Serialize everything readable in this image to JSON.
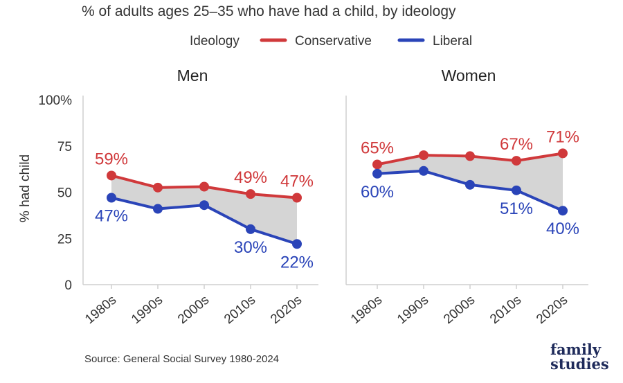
{
  "chart_data": {
    "type": "line",
    "subtitle": "% of adults ages 25–35 who have had a child, by ideology",
    "legend": {
      "title": "Ideology",
      "placement": "top-center",
      "entries": [
        {
          "name": "Conservative",
          "color": "#d0393b"
        },
        {
          "name": "Liberal",
          "color": "#2a44b8"
        }
      ]
    },
    "ylabel": "% had child",
    "ylim": [
      0,
      100
    ],
    "yticks": [
      0,
      25,
      50,
      75,
      100
    ],
    "ytick_labels": [
      "0",
      "25",
      "50",
      "75",
      "100%"
    ],
    "categories": [
      "1980s",
      "1990s",
      "2000s",
      "2010s",
      "2020s"
    ],
    "grid": false,
    "gap_fill": "#d5d5d5",
    "facets": [
      {
        "title": "Men",
        "series": [
          {
            "name": "Conservative",
            "values": [
              59,
              52.5,
              53,
              49,
              47
            ],
            "labels": [
              "59%",
              "",
              "",
              "49%",
              "47%"
            ]
          },
          {
            "name": "Liberal",
            "values": [
              47,
              41,
              43,
              30,
              22
            ],
            "labels": [
              "47%",
              "",
              "",
              "30%",
              "22%"
            ]
          }
        ]
      },
      {
        "title": "Women",
        "series": [
          {
            "name": "Conservative",
            "values": [
              65,
              70,
              69.5,
              67,
              71
            ],
            "labels": [
              "65%",
              "",
              "",
              "67%",
              "71%"
            ]
          },
          {
            "name": "Liberal",
            "values": [
              60,
              61.5,
              54,
              51,
              40
            ],
            "labels": [
              "60%",
              "",
              "",
              "51%",
              "40%"
            ]
          }
        ]
      }
    ]
  },
  "source": "Source: General Social Survey 1980-2024",
  "logo": {
    "line1": "family",
    "line2": "studies",
    "color1": "#1e2a5a",
    "color2": "#1e2a5a"
  }
}
